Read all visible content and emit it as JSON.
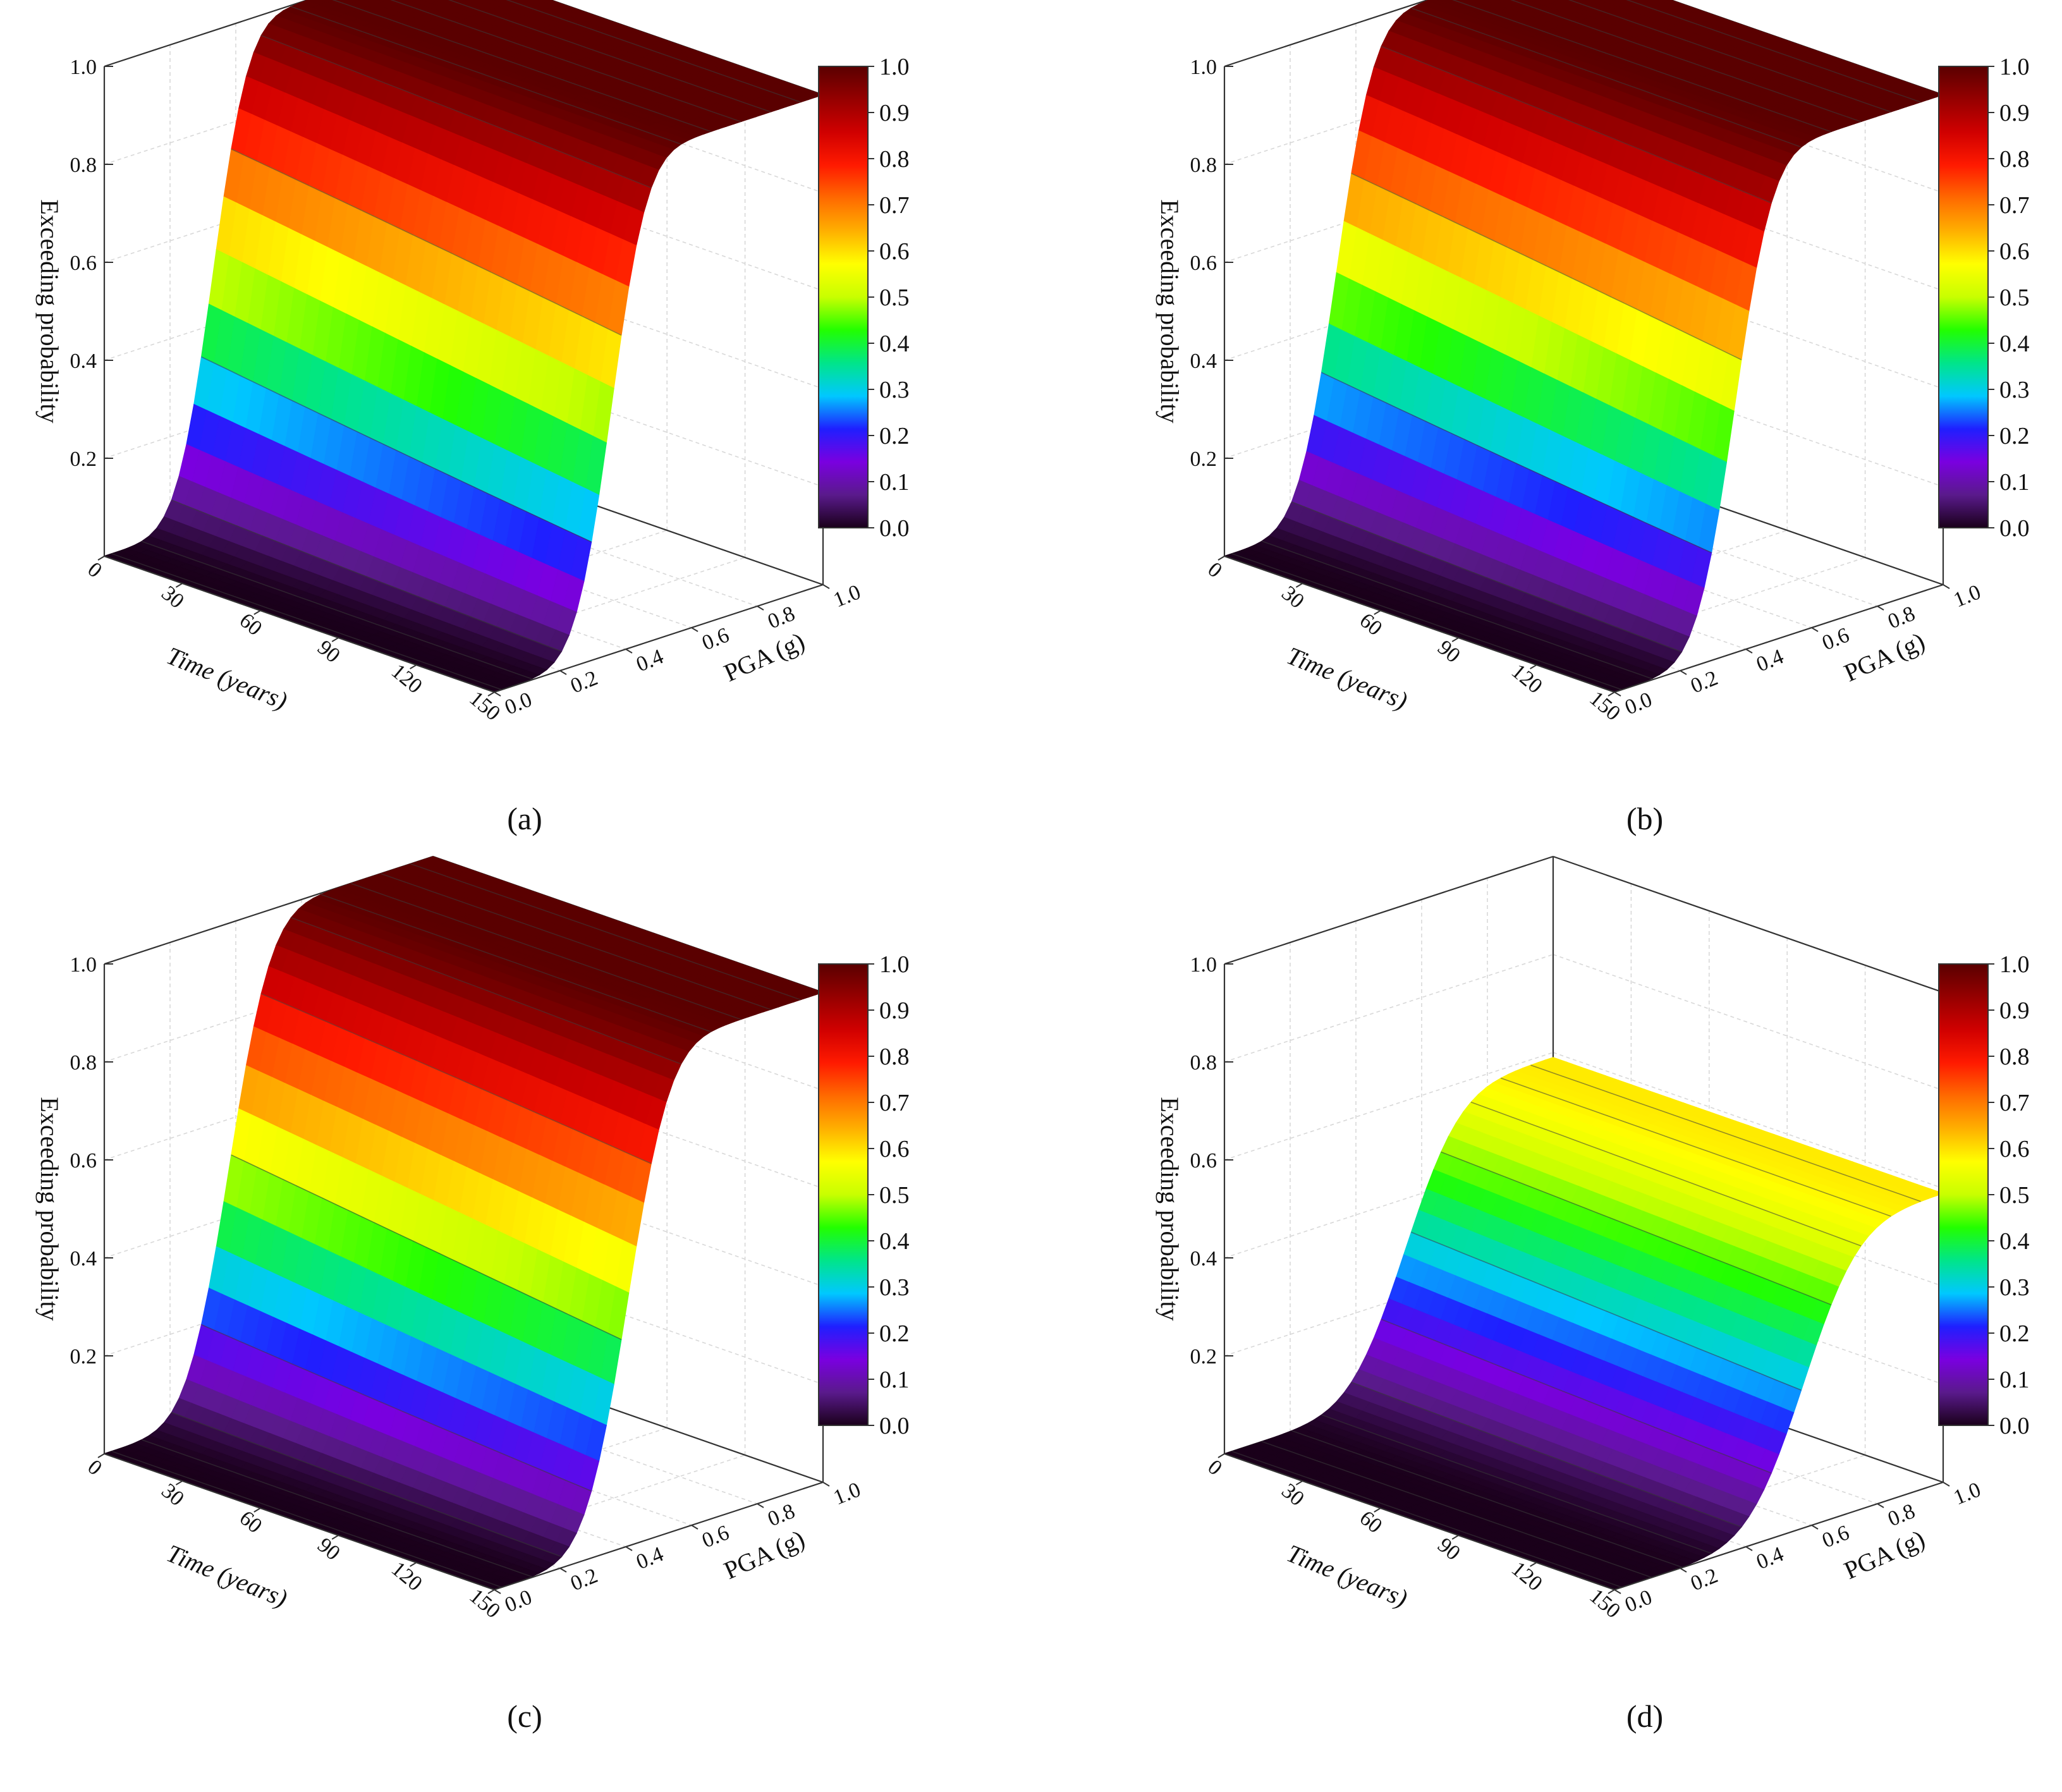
{
  "axes": {
    "time_label": "Time (years)",
    "pga_label": "PGA (g)",
    "prob_label": "Exceeding probability"
  },
  "colorbar": {
    "ticks": [
      "0.0",
      "0.1",
      "0.2",
      "0.3",
      "0.4",
      "0.5",
      "0.6",
      "0.7",
      "0.8",
      "0.9",
      "1.0"
    ],
    "colors": [
      "#1a001a",
      "#5a1a8c",
      "#7a00e0",
      "#1f1fff",
      "#00c8ff",
      "#00e58a",
      "#22ff00",
      "#c8ff00",
      "#ffff00",
      "#ffb000",
      "#ff6a00",
      "#ff1a00",
      "#d00000",
      "#960000",
      "#5a0000"
    ]
  },
  "chart_data": [
    {
      "type": "surface",
      "caption": "(a)",
      "x_name": "Time (years)",
      "x_ticks": [
        0,
        30,
        60,
        90,
        120,
        150
      ],
      "xlim": [
        0,
        150
      ],
      "y_name": "PGA (g)",
      "y_ticks": [
        0.0,
        0.2,
        0.4,
        0.6,
        0.8,
        1.0
      ],
      "ylim": [
        0.0,
        1.0
      ],
      "z_name": "Exceeding probability",
      "z_ticks": [
        0.2,
        0.4,
        0.6,
        0.8,
        1.0
      ],
      "zlim": [
        0,
        1.0
      ],
      "pga_median": [
        0.33,
        0.335,
        0.34,
        0.345,
        0.35,
        0.355
      ],
      "pga_dispersion": 0.085,
      "pmax": [
        1.0,
        1.0,
        1.0,
        1.0,
        1.0,
        1.0
      ]
    },
    {
      "type": "surface",
      "caption": "(b)",
      "x_name": "Time (years)",
      "x_ticks": [
        0,
        30,
        60,
        90,
        120,
        150
      ],
      "xlim": [
        0,
        150
      ],
      "y_name": "PGA (g)",
      "y_ticks": [
        0.0,
        0.2,
        0.4,
        0.6,
        0.8,
        1.0
      ],
      "ylim": [
        0.0,
        1.0
      ],
      "z_name": "Exceeding probability",
      "z_ticks": [
        0.2,
        0.4,
        0.6,
        0.8,
        1.0
      ],
      "zlim": [
        0,
        1.0
      ],
      "pga_median": [
        0.34,
        0.345,
        0.35,
        0.355,
        0.36,
        0.365
      ],
      "pga_dispersion": 0.09,
      "pmax": [
        1.0,
        1.0,
        1.0,
        1.0,
        1.0,
        1.0
      ]
    },
    {
      "type": "surface",
      "caption": "(c)",
      "x_name": "Time (years)",
      "x_ticks": [
        0,
        30,
        60,
        90,
        120,
        150
      ],
      "xlim": [
        0,
        150
      ],
      "y_name": "PGA (g)",
      "y_ticks": [
        0.0,
        0.2,
        0.4,
        0.6,
        0.8,
        1.0
      ],
      "ylim": [
        0.0,
        1.0
      ],
      "z_name": "Exceeding probability",
      "z_ticks": [
        0.2,
        0.4,
        0.6,
        0.8,
        1.0
      ],
      "zlim": [
        0,
        1.0
      ],
      "pga_median": [
        0.38,
        0.385,
        0.39,
        0.395,
        0.4,
        0.405
      ],
      "pga_dispersion": 0.1,
      "pmax": [
        1.0,
        1.0,
        1.0,
        1.0,
        1.0,
        1.0
      ]
    },
    {
      "type": "surface",
      "caption": "(d)",
      "x_name": "Time (years)",
      "x_ticks": [
        0,
        30,
        60,
        90,
        120,
        150
      ],
      "xlim": [
        0,
        150
      ],
      "y_name": "PGA (g)",
      "y_ticks": [
        0.0,
        0.2,
        0.4,
        0.6,
        0.8,
        1.0
      ],
      "ylim": [
        0.0,
        1.0
      ],
      "z_name": "Exceeding probability",
      "z_ticks": [
        0.2,
        0.4,
        0.6,
        0.8,
        1.0
      ],
      "zlim": [
        0,
        1.0
      ],
      "pga_median": [
        0.55,
        0.555,
        0.56,
        0.565,
        0.57,
        0.575
      ],
      "pga_dispersion": 0.13,
      "pmax": [
        0.59,
        0.59,
        0.59,
        0.59,
        0.59,
        0.59
      ]
    }
  ]
}
